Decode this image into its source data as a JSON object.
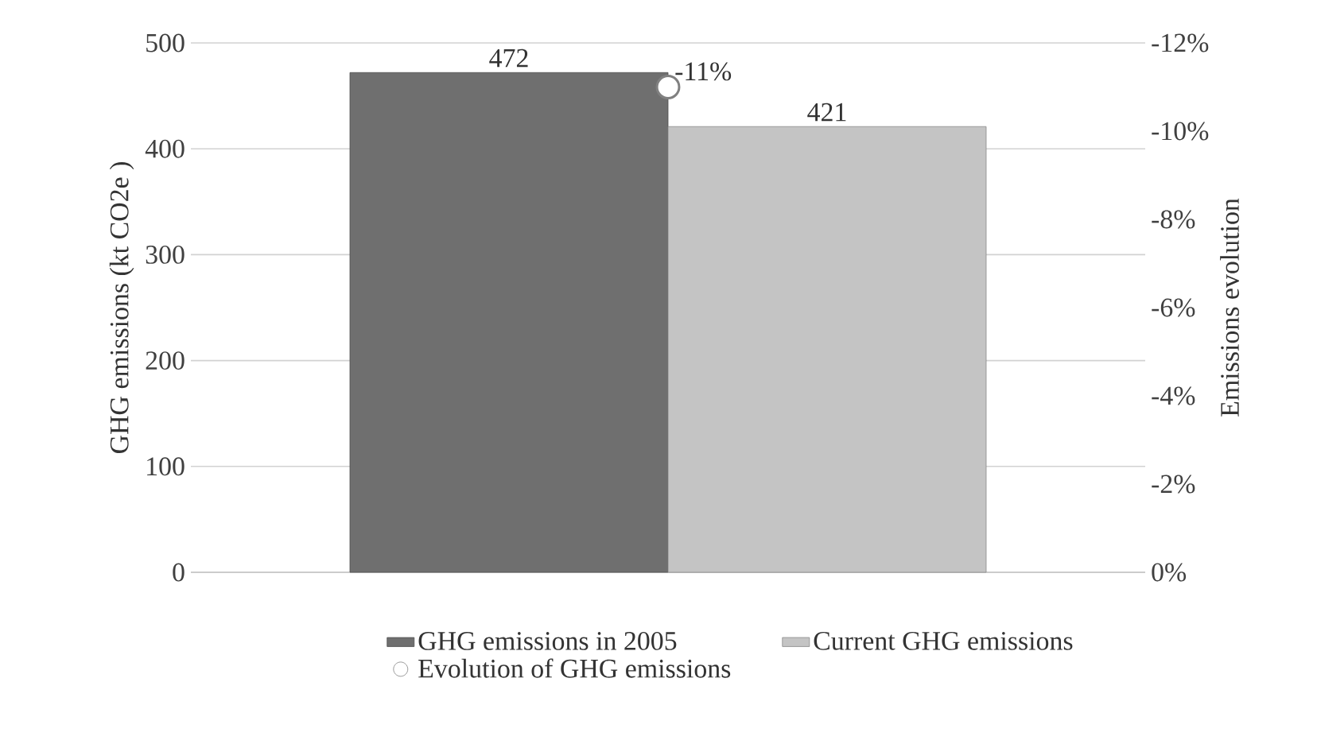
{
  "chart_data": {
    "type": "bar",
    "categories": [
      null
    ],
    "ylabel": "GHG emissions (kt CO2e )",
    "y2label": "Emissions evolution",
    "ylim": [
      0,
      500
    ],
    "yticks": [
      0,
      100,
      200,
      300,
      400,
      500
    ],
    "y2lim": [
      0,
      -12
    ],
    "y2ticks": [
      {
        "value": 0,
        "label": "0%"
      },
      {
        "value": -2,
        "label": "-2%"
      },
      {
        "value": -4,
        "label": "-4%"
      },
      {
        "value": -6,
        "label": "-6%"
      },
      {
        "value": -8,
        "label": "-8%"
      },
      {
        "value": -10,
        "label": "-10%"
      },
      {
        "value": -12,
        "label": "-12%"
      }
    ],
    "grid": "y",
    "legend": "bottom",
    "marker": "circle",
    "series": [
      {
        "name": "GHG emissions in 2005",
        "color": "#6f6f6f",
        "values": [
          472
        ],
        "value_labels": [
          "472"
        ]
      },
      {
        "name": "Current GHG emissions",
        "color": "#c4c4c4",
        "values": [
          421
        ],
        "value_labels": [
          "421"
        ]
      },
      {
        "name": "Evolution of GHG emissions",
        "type": "scatter",
        "axis": "y2",
        "color": "#ffffff",
        "values": [
          -11
        ],
        "value_labels": [
          "-11%"
        ]
      }
    ]
  }
}
